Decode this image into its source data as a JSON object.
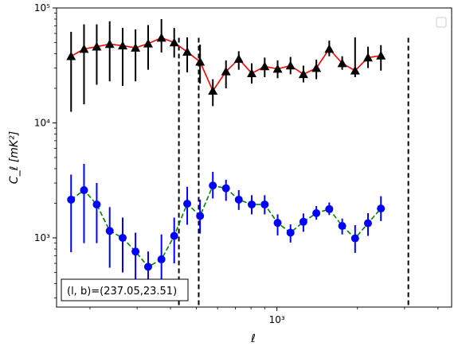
{
  "chart_data": {
    "type": "scatter",
    "x_scale": "log",
    "y_scale": "log",
    "xlim": [
      150,
      4500
    ],
    "ylim": [
      250,
      100000
    ],
    "xlabel": "ℓ",
    "ylabel": "C_ℓ [mK²]",
    "x_ticks": [
      {
        "value": 1000,
        "label": "10³"
      }
    ],
    "y_ticks": [
      {
        "value": 1000,
        "label": "10³"
      },
      {
        "value": 10000,
        "label": "10⁴"
      },
      {
        "value": 100000,
        "label": "10⁵"
      }
    ],
    "vlines": [
      430,
      510,
      3100
    ],
    "annotation": "(l, b)=(237.05,23.51)",
    "legend": {
      "placement": "top-right",
      "entries": []
    },
    "grid": false,
    "series": [
      {
        "marker": "triangle",
        "marker_color": "#000000",
        "line_color": "#ff0000",
        "line_style": "solid",
        "x": [
          170,
          190,
          212,
          237,
          265,
          296,
          330,
          370,
          413,
          462,
          516,
          576,
          645,
          720,
          805,
          900,
          1006,
          1124,
          1256,
          1404,
          1569,
          1754,
          1960,
          2190,
          2448,
          2736,
          3058,
          3417,
          3820
        ],
        "y": [
          38000,
          44000,
          46000,
          48500,
          47000,
          45000,
          49000,
          55000,
          50000,
          41500,
          34000,
          19000,
          28000,
          36000,
          27000,
          31000,
          29500,
          31500,
          26500,
          30000,
          44000,
          33000,
          28500,
          37000,
          38500,
          null,
          null,
          null,
          null
        ],
        "err_low": [
          25500,
          29500,
          24500,
          25500,
          26000,
          22000,
          20000,
          14000,
          13000,
          14000,
          12000,
          5000,
          8000,
          7000,
          5000,
          6000,
          5000,
          5000,
          4000,
          6000,
          6000,
          4000,
          3500,
          7000,
          10000,
          null,
          null,
          null,
          null
        ],
        "err_high": [
          24000,
          28000,
          26000,
          28000,
          20000,
          20000,
          22000,
          25000,
          17000,
          14000,
          14000,
          5000,
          7000,
          6000,
          6000,
          6000,
          5500,
          6000,
          5000,
          5500,
          8000,
          5000,
          27000,
          9000,
          9000,
          null,
          null,
          null,
          null
        ]
      },
      {
        "marker": "circle",
        "marker_color": "#0000ff",
        "line_color": "#008000",
        "line_style": "dashed",
        "x": [
          170,
          190,
          212,
          237,
          265,
          296,
          330,
          370,
          413,
          462,
          516,
          576,
          645,
          720,
          805,
          900,
          1006,
          1124,
          1256,
          1404,
          1569,
          1754,
          1960,
          2190,
          2448,
          2736,
          3058,
          3417,
          3820
        ],
        "y": [
          2150,
          2600,
          1950,
          1150,
          1000,
          760,
          560,
          650,
          1040,
          1980,
          1550,
          2850,
          2700,
          2150,
          1950,
          1950,
          1350,
          1110,
          1380,
          1640,
          1780,
          1270,
          990,
          1340,
          1800,
          null,
          null,
          null,
          null
        ],
        "err_low": [
          1400,
          1700,
          1050,
          600,
          500,
          400,
          250,
          320,
          440,
          680,
          460,
          650,
          600,
          400,
          350,
          350,
          300,
          200,
          250,
          200,
          200,
          200,
          250,
          300,
          400,
          null,
          null,
          null,
          null
        ],
        "err_high": [
          1400,
          1800,
          1050,
          700,
          500,
          350,
          200,
          420,
          460,
          800,
          600,
          900,
          500,
          450,
          400,
          400,
          250,
          200,
          250,
          250,
          250,
          200,
          300,
          300,
          500,
          null,
          null,
          null,
          null
        ]
      }
    ]
  }
}
